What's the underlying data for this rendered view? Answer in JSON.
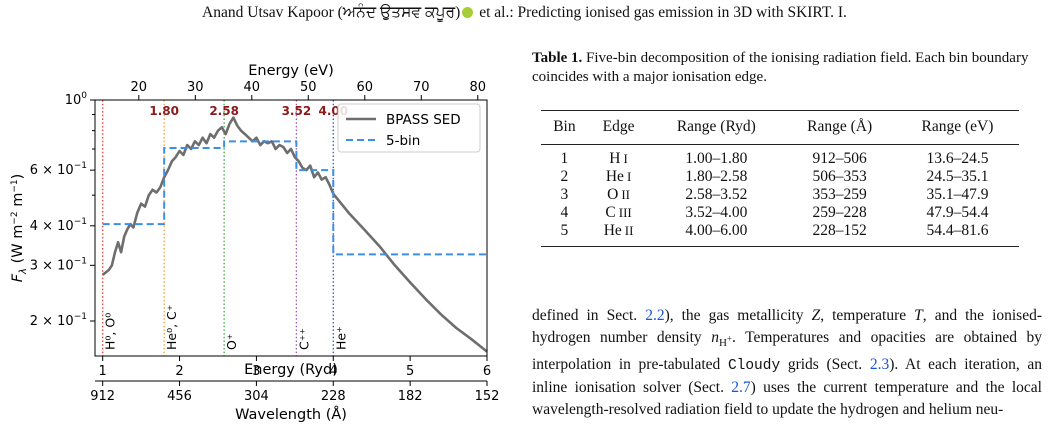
{
  "header": {
    "authors_line_a": "Anand Utsav Kapoor (ਅਨੰਦ ਉਤਸਵ ਕਪੂਰ)",
    "authors_line_b": " et al.: Predicting ionised gas emission in 3D with SKIRT. I."
  },
  "colors": {
    "sed": "#6e6e6e",
    "bins": "#3d8ee6",
    "edge_labels": "#8b1a1a",
    "link": "#1a53d6"
  },
  "table": {
    "caption_label": "Table 1.",
    "caption_text": " Five-bin decomposition of the ionising radiation field. Each bin boundary coincides with a major ionisation edge.",
    "columns": [
      "Bin",
      "Edge",
      "Range (Ryd)",
      "Range (Å)",
      "Range (eV)"
    ],
    "rows": [
      {
        "bin": "1",
        "edge_el": "H",
        "edge_ion": "I",
        "ryd": "1.00–1.80",
        "ang": "912–506",
        "ev": "13.6–24.5"
      },
      {
        "bin": "2",
        "edge_el": "He",
        "edge_ion": "I",
        "ryd": "1.80–2.58",
        "ang": "506–353",
        "ev": "24.5–35.1"
      },
      {
        "bin": "3",
        "edge_el": "O",
        "edge_ion": "II",
        "ryd": "2.58–3.52",
        "ang": "353–259",
        "ev": "35.1–47.9"
      },
      {
        "bin": "4",
        "edge_el": "C",
        "edge_ion": "III",
        "ryd": "3.52–4.00",
        "ang": "259–228",
        "ev": "47.9–54.4"
      },
      {
        "bin": "5",
        "edge_el": "He",
        "edge_ion": "II",
        "ryd": "4.00–6.00",
        "ang": "228–152",
        "ev": "54.4–81.6"
      }
    ]
  },
  "body": {
    "p1": "defined in Sect. ",
    "ref1": "2.2",
    "p2": "), the gas metallicity ",
    "Z": "Z",
    "p3": ", temperature ",
    "T": "T",
    "p4": ", and the ionised-hydrogen number density ",
    "n": "n",
    "nsub": "H",
    "nsup": "+",
    "p5": ". Temperatures and opacities are obtained by interpolation in pre-tabulated ",
    "cloudy": "Cloudy",
    "p6": " grids (Sect. ",
    "ref2": "2.3",
    "p7": "). At each iteration, an inline ionisation solver (Sect. ",
    "ref3": "2.7",
    "p8": ") uses the current temperature and the local wavelength-resolved radiation field to update the hydrogen and helium neu-"
  },
  "chart_data": {
    "type": "line",
    "xlabel": "Energy (Ryd)",
    "ylabel": "F_λ (W m^-2 m^-1)",
    "top_axis_label": "Energy (eV)",
    "bottom2_axis_label": "Wavelength (Å)",
    "xlim": [
      0.9,
      6.0
    ],
    "ylim": [
      0.155,
      1.0
    ],
    "yscale": "log",
    "x_ticks": [
      "1",
      "2",
      "3",
      "4",
      "5",
      "6"
    ],
    "top_ticks": [
      "20",
      "30",
      "40",
      "50",
      "60",
      "70",
      "80"
    ],
    "top_tick_values_ev": [
      20,
      30,
      40,
      50,
      60,
      70,
      80
    ],
    "wavelength_ticks": [
      "912",
      "456",
      "304",
      "228",
      "182",
      "152"
    ],
    "wavelength_tick_values_ryd": [
      1,
      2,
      3,
      4,
      5,
      6
    ],
    "y_ticks": [
      {
        "base": "10",
        "exp": "0",
        "value": 1.0
      },
      {
        "base": "6 × 10",
        "exp": "−1",
        "value": 0.6
      },
      {
        "base": "4 × 10",
        "exp": "−1",
        "value": 0.4
      },
      {
        "base": "3 × 10",
        "exp": "−1",
        "value": 0.3
      },
      {
        "base": "2 × 10",
        "exp": "−1",
        "value": 0.2
      }
    ],
    "legend": {
      "position": "top-right",
      "sed": "BPASS SED",
      "bins": "5-bin"
    },
    "edge_values": [
      "1.80",
      "2.58",
      "3.52",
      "4.00"
    ],
    "edges": [
      {
        "x": 1.0,
        "label": "H⁰, O⁰",
        "color": "#e8403a"
      },
      {
        "x": 1.8,
        "label": "He⁰, C⁺",
        "color": "#f0a030"
      },
      {
        "x": 2.58,
        "label": "O⁺",
        "color": "#3aa845"
      },
      {
        "x": 3.52,
        "label": "C⁺⁺",
        "color": "#9b59b6"
      },
      {
        "x": 4.0,
        "label": "He⁺",
        "color": "#3050c8"
      }
    ],
    "bins": [
      {
        "x0": 1.0,
        "x1": 1.8,
        "y": 0.405
      },
      {
        "x0": 1.8,
        "x1": 2.58,
        "y": 0.705
      },
      {
        "x0": 2.58,
        "x1": 3.52,
        "y": 0.74
      },
      {
        "x0": 3.52,
        "x1": 4.0,
        "y": 0.6
      },
      {
        "x0": 4.0,
        "x1": 6.0,
        "y": 0.325
      }
    ],
    "sed_series": {
      "name": "BPASS SED",
      "x": [
        1.0,
        1.04,
        1.08,
        1.12,
        1.16,
        1.2,
        1.24,
        1.28,
        1.32,
        1.36,
        1.4,
        1.45,
        1.5,
        1.55,
        1.6,
        1.65,
        1.7,
        1.75,
        1.8,
        1.85,
        1.9,
        1.95,
        2.0,
        2.05,
        2.1,
        2.15,
        2.2,
        2.25,
        2.3,
        2.35,
        2.4,
        2.45,
        2.5,
        2.55,
        2.6,
        2.65,
        2.7,
        2.75,
        2.8,
        2.85,
        2.9,
        2.95,
        3.0,
        3.05,
        3.1,
        3.15,
        3.2,
        3.25,
        3.3,
        3.35,
        3.4,
        3.45,
        3.5,
        3.55,
        3.6,
        3.65,
        3.7,
        3.75,
        3.8,
        3.85,
        3.9,
        3.95,
        4.0,
        4.2,
        4.4,
        4.6,
        4.8,
        5.0,
        5.2,
        5.4,
        5.6,
        5.8,
        6.0
      ],
      "y": [
        0.28,
        0.285,
        0.29,
        0.3,
        0.33,
        0.355,
        0.33,
        0.37,
        0.39,
        0.405,
        0.395,
        0.44,
        0.47,
        0.46,
        0.5,
        0.52,
        0.51,
        0.53,
        0.57,
        0.6,
        0.64,
        0.66,
        0.69,
        0.67,
        0.72,
        0.7,
        0.74,
        0.72,
        0.76,
        0.73,
        0.78,
        0.76,
        0.8,
        0.82,
        0.78,
        0.84,
        0.88,
        0.83,
        0.8,
        0.78,
        0.76,
        0.74,
        0.76,
        0.72,
        0.74,
        0.73,
        0.74,
        0.7,
        0.72,
        0.71,
        0.68,
        0.7,
        0.66,
        0.64,
        0.61,
        0.6,
        0.62,
        0.57,
        0.59,
        0.56,
        0.57,
        0.54,
        0.505,
        0.44,
        0.39,
        0.345,
        0.3,
        0.265,
        0.235,
        0.21,
        0.19,
        0.175,
        0.16
      ]
    }
  }
}
